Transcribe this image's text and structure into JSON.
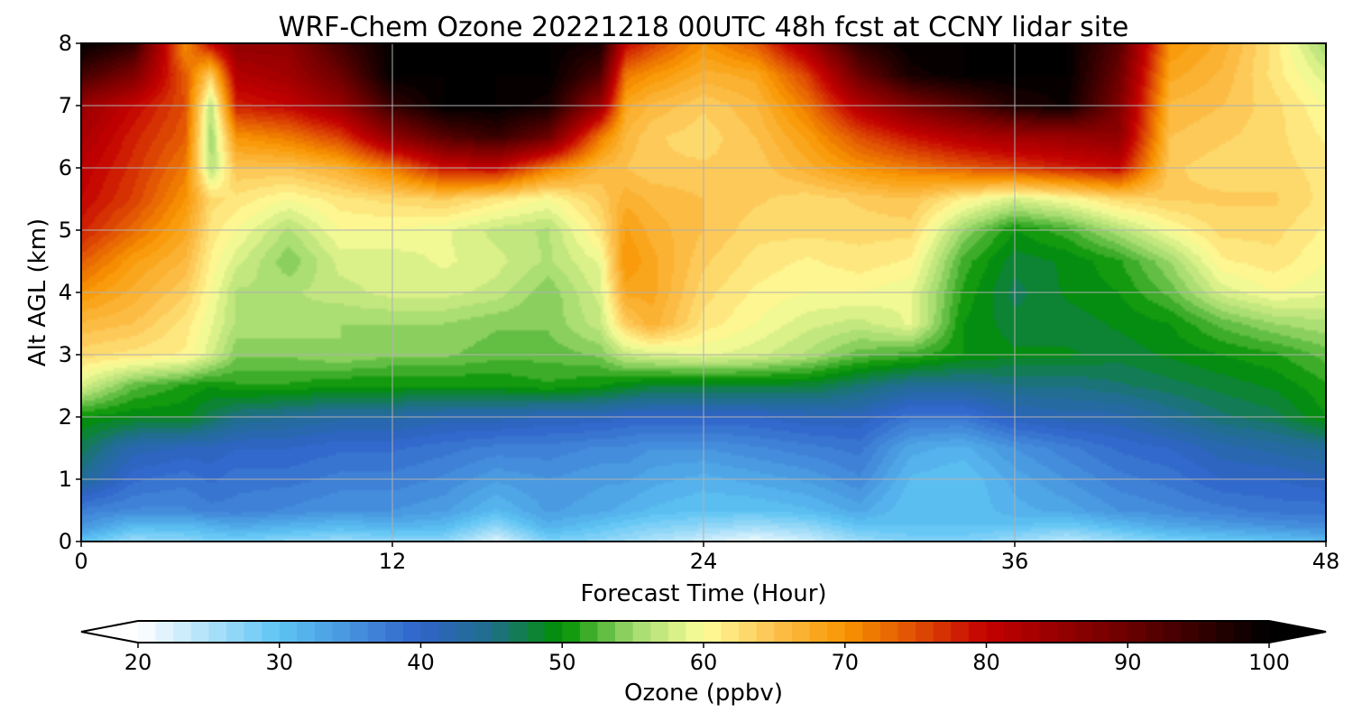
{
  "chart_data": {
    "type": "heatmap",
    "title": "WRF-Chem Ozone  20221218 00UTC 48h fcst at CCNY lidar site",
    "xlabel": "Forecast Time (Hour)",
    "ylabel": "Alt AGL (km)",
    "xlim": [
      0,
      48
    ],
    "ylim": [
      0,
      8
    ],
    "xticks": [
      0,
      12,
      24,
      36,
      48
    ],
    "yticks": [
      0,
      1,
      2,
      3,
      4,
      5,
      6,
      7,
      8
    ],
    "grid": true,
    "z_label": "Ozone  (ppbv)",
    "zlim": [
      20,
      100
    ],
    "colorbar_ticks": [
      20,
      30,
      40,
      50,
      60,
      70,
      80,
      90,
      100
    ],
    "colorbar_extend": "both",
    "colormap_anchors": [
      {
        "value": 20,
        "color": "#ffffff"
      },
      {
        "value": 30,
        "color": "#5ec4f4"
      },
      {
        "value": 40,
        "color": "#2f63c9"
      },
      {
        "value": 45,
        "color": "#1f6f8a"
      },
      {
        "value": 50,
        "color": "#009100"
      },
      {
        "value": 55,
        "color": "#9fd96d"
      },
      {
        "value": 60,
        "color": "#fdfd9a"
      },
      {
        "value": 65,
        "color": "#fdc24e"
      },
      {
        "value": 70,
        "color": "#f89500"
      },
      {
        "value": 75,
        "color": "#e04e04"
      },
      {
        "value": 80,
        "color": "#c30000"
      },
      {
        "value": 90,
        "color": "#6b0000"
      },
      {
        "value": 100,
        "color": "#000000"
      }
    ],
    "x": [
      0,
      2,
      4,
      5,
      6,
      8,
      10,
      12,
      14,
      16,
      18,
      20,
      21,
      22,
      24,
      26,
      28,
      30,
      32,
      34,
      36,
      38,
      40,
      42,
      44,
      46,
      48
    ],
    "y": [
      0,
      0.25,
      0.5,
      1,
      1.5,
      2,
      2.5,
      3,
      3.5,
      4,
      4.5,
      5,
      5.5,
      6,
      6.5,
      7,
      7.5,
      8
    ],
    "z": [
      [
        30,
        26,
        27,
        28,
        28,
        27,
        26,
        27,
        27,
        22,
        28,
        27,
        26,
        25,
        23,
        21,
        23,
        26,
        28,
        28,
        26,
        24,
        26,
        28,
        29,
        30,
        31
      ],
      [
        35,
        31,
        31,
        32,
        33,
        32,
        31,
        32,
        31,
        27,
        32,
        30,
        29,
        28,
        27,
        26,
        27,
        30,
        30,
        30,
        30,
        29,
        31,
        33,
        34,
        35,
        36
      ],
      [
        37,
        36,
        36,
        37,
        37,
        36,
        35,
        35,
        34,
        31,
        34,
        33,
        32,
        31,
        30,
        30,
        31,
        33,
        30,
        30,
        32,
        33,
        35,
        36,
        37,
        38,
        38
      ],
      [
        44,
        39,
        38,
        39,
        38,
        38,
        37,
        37,
        36,
        34,
        35,
        34,
        34,
        33,
        32,
        33,
        34,
        36,
        31,
        30,
        33,
        35,
        37,
        38,
        40,
        40,
        41
      ],
      [
        47,
        42,
        41,
        41,
        40,
        40,
        39,
        39,
        38,
        37,
        37,
        36,
        36,
        35,
        35,
        36,
        37,
        38,
        33,
        32,
        35,
        37,
        39,
        40,
        42,
        43,
        44
      ],
      [
        50,
        49,
        49,
        47,
        45,
        44,
        43,
        43,
        42,
        42,
        41,
        41,
        40,
        40,
        40,
        40,
        41,
        41,
        38,
        38,
        41,
        42,
        42,
        44,
        46,
        47,
        50
      ],
      [
        58,
        53,
        51,
        50,
        51,
        51,
        50,
        50,
        50,
        50,
        51,
        50,
        49,
        48,
        48,
        48,
        48,
        46,
        44,
        44,
        45,
        45,
        46,
        47,
        48,
        49,
        51
      ],
      [
        63,
        62,
        61,
        58,
        54,
        54,
        55,
        54,
        54,
        53,
        53,
        54,
        57,
        58,
        59,
        58,
        56,
        53,
        52,
        50,
        49,
        49,
        48,
        49,
        50,
        51,
        53
      ],
      [
        66,
        65,
        62,
        59,
        56,
        56,
        55,
        55,
        55,
        54,
        54,
        57,
        64,
        67,
        62,
        60,
        58,
        57,
        59,
        50,
        48,
        48,
        49,
        50,
        53,
        55,
        56
      ],
      [
        70,
        67,
        64,
        60,
        56,
        56,
        57,
        58,
        58,
        57,
        54,
        58,
        68,
        68,
        63,
        61,
        60,
        60,
        59,
        51,
        47,
        49,
        50,
        53,
        58,
        60,
        59
      ],
      [
        74,
        69,
        66,
        61,
        58,
        54,
        58,
        58,
        59,
        58,
        56,
        59,
        70,
        68,
        64,
        62,
        61,
        62,
        61,
        52,
        48,
        49,
        51,
        55,
        61,
        62,
        60
      ],
      [
        78,
        73,
        68,
        62,
        60,
        56,
        60,
        60,
        59,
        57,
        56,
        62,
        69,
        67,
        65,
        63,
        63,
        63,
        63,
        55,
        50,
        52,
        56,
        60,
        63,
        63,
        61
      ],
      [
        80,
        76,
        70,
        63,
        62,
        60,
        62,
        63,
        64,
        62,
        60,
        64,
        67,
        66,
        65,
        64,
        63,
        64,
        65,
        61,
        58,
        60,
        63,
        64,
        64,
        64,
        62
      ],
      [
        81,
        77,
        72,
        56,
        65,
        65,
        67,
        72,
        79,
        80,
        72,
        66,
        65,
        64,
        64,
        64,
        67,
        70,
        72,
        74,
        76,
        78,
        80,
        64,
        63,
        63,
        62
      ],
      [
        83,
        78,
        74,
        55,
        70,
        72,
        76,
        86,
        92,
        95,
        90,
        72,
        66,
        64,
        63,
        65,
        69,
        75,
        79,
        82,
        84,
        85,
        86,
        65,
        64,
        63,
        61
      ],
      [
        85,
        80,
        75,
        56,
        78,
        80,
        85,
        95,
        100,
        100,
        98,
        85,
        68,
        66,
        64,
        66,
        72,
        82,
        88,
        92,
        97,
        99,
        88,
        66,
        65,
        63,
        60
      ],
      [
        94,
        88,
        74,
        64,
        82,
        84,
        90,
        100,
        100,
        100,
        100,
        93,
        72,
        70,
        67,
        68,
        76,
        90,
        98,
        100,
        100,
        100,
        90,
        68,
        66,
        62,
        58
      ],
      [
        100,
        96,
        70,
        80,
        86,
        86,
        94,
        100,
        100,
        100,
        100,
        98,
        80,
        76,
        70,
        74,
        84,
        96,
        100,
        100,
        100,
        100,
        92,
        70,
        67,
        62,
        55
      ]
    ]
  }
}
